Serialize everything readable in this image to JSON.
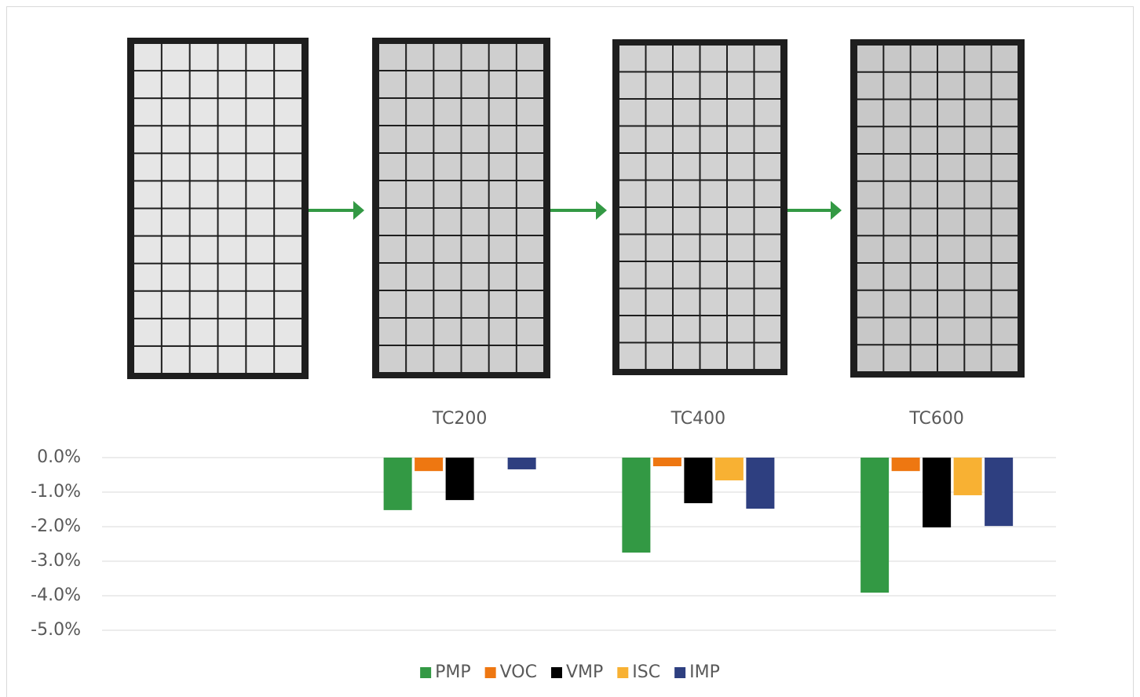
{
  "chart_data": {
    "type": "bar",
    "categories": [
      null,
      "TC200",
      "TC400",
      "TC600"
    ],
    "series": [
      {
        "name": "PMP",
        "color": "#339944",
        "values": [
          null,
          -1.52,
          -2.75,
          -3.91
        ]
      },
      {
        "name": "VOC",
        "color": "#ee7711",
        "values": [
          null,
          -0.39,
          -0.25,
          -0.39
        ]
      },
      {
        "name": "VMP",
        "color": "#000000",
        "values": [
          null,
          -1.23,
          -1.32,
          -2.02
        ]
      },
      {
        "name": "ISC",
        "color": "#f8b133",
        "values": [
          null,
          0,
          -0.66,
          -1.09
        ]
      },
      {
        "name": "IMP",
        "color": "#2e3f80",
        "values": [
          null,
          -0.34,
          -1.48,
          -1.98
        ]
      }
    ],
    "ylim": [
      -5,
      0
    ],
    "yticks": [
      {
        "value": 0,
        "label": "0.0%"
      },
      {
        "value": -1,
        "label": "-1.0%"
      },
      {
        "value": -2,
        "label": "-2.0%"
      },
      {
        "value": -3,
        "label": "-3.0%"
      },
      {
        "value": -4,
        "label": "-4.0%"
      },
      {
        "value": -5,
        "label": "-5.0%"
      }
    ],
    "grid": true,
    "legend": "bottom"
  }
}
